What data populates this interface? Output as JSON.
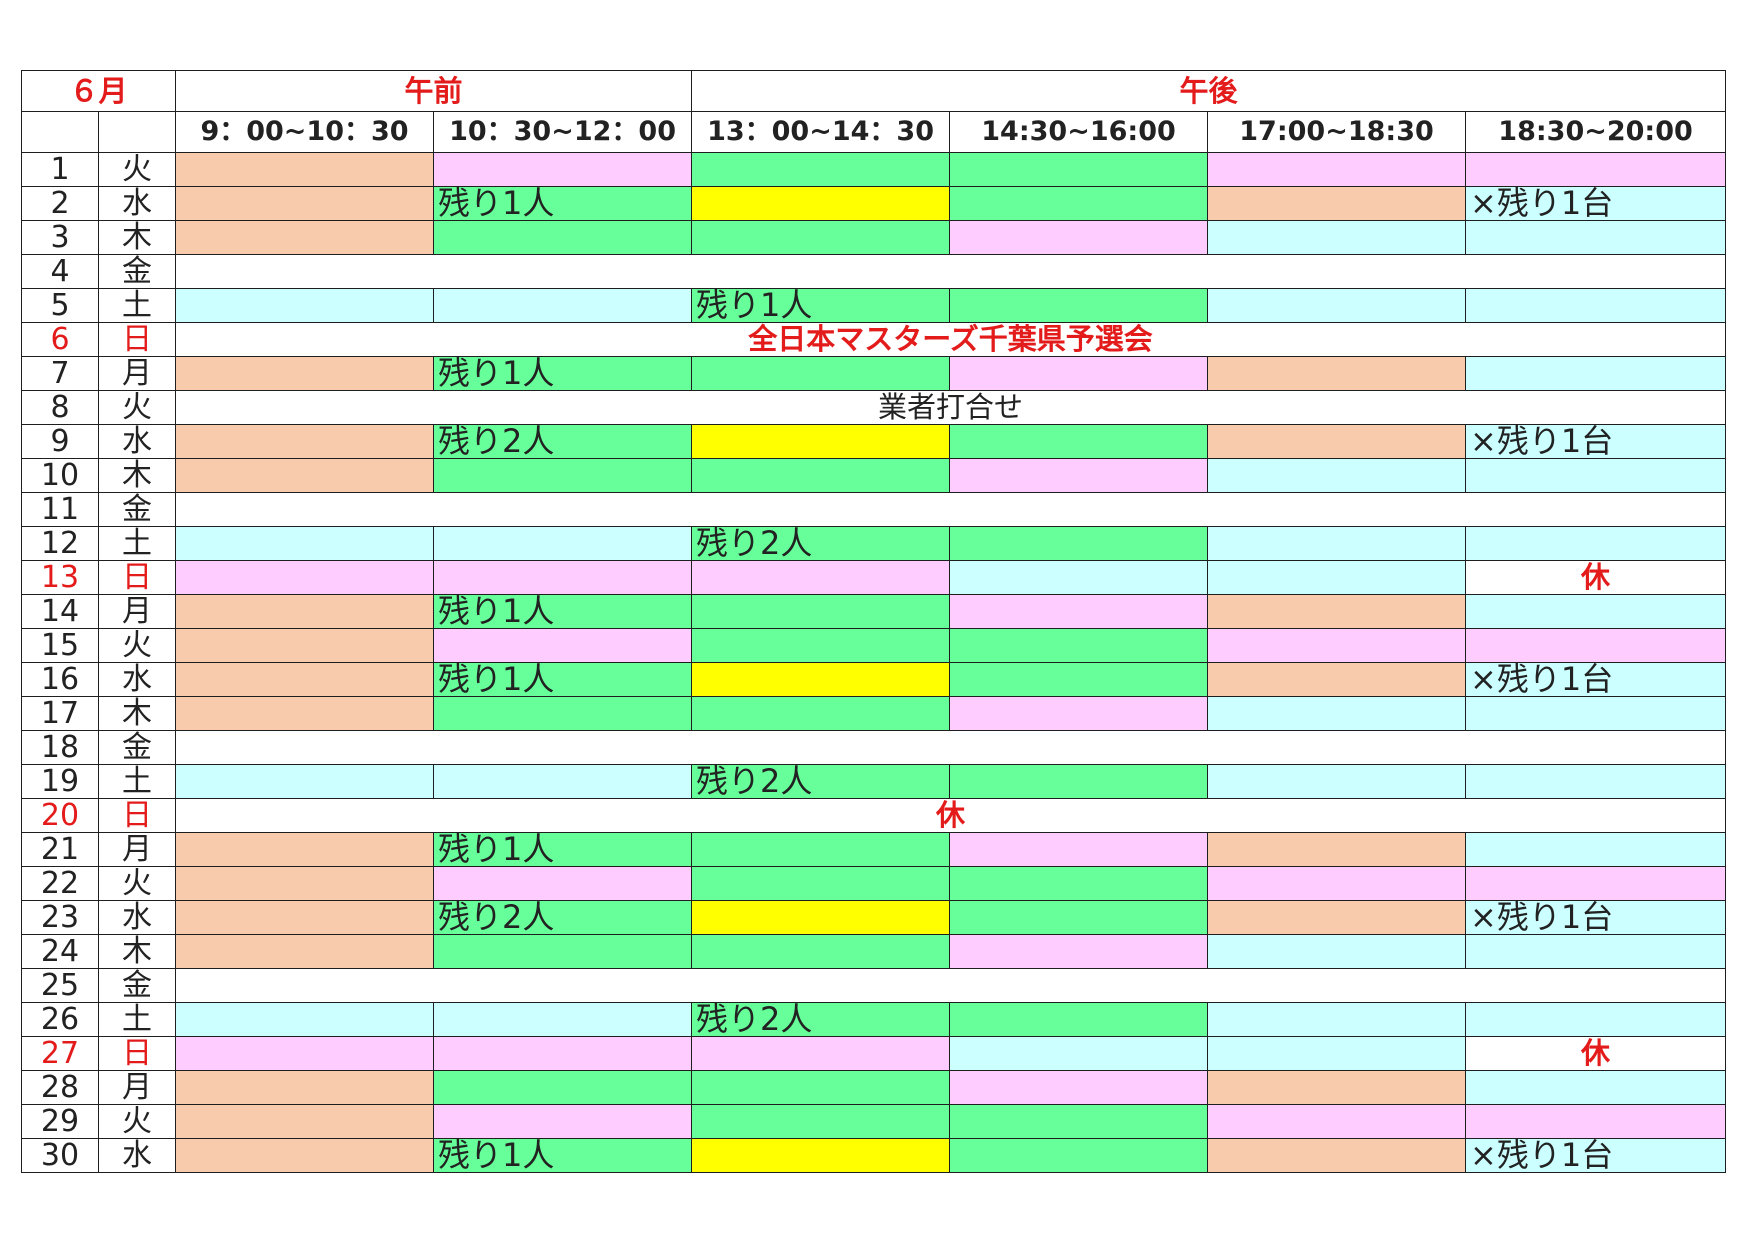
{
  "header": {
    "month": "６月",
    "morning": "午前",
    "afternoon": "午後",
    "slots": [
      "9：00~10：30",
      "10：30~12：00",
      "13：00~14：30",
      "14:30~16:00",
      "17:00~18:30",
      "18:30~20:00"
    ]
  },
  "legend_colors": {
    "peach": "#f8cbad",
    "pink": "#ffccff",
    "green": "#66ff99",
    "yellow": "#ffff00",
    "cyan": "#ccffff",
    "white": "#ffffff",
    "holiday_red": "#e31b1b"
  },
  "rows": [
    {
      "day": "1",
      "weekday": "火",
      "cells": [
        {
          "c": "peach"
        },
        {
          "c": "pink"
        },
        {
          "c": "green"
        },
        {
          "c": "green"
        },
        {
          "c": "pink"
        },
        {
          "c": "pink"
        }
      ]
    },
    {
      "day": "2",
      "weekday": "水",
      "cells": [
        {
          "c": "peach"
        },
        {
          "c": "green",
          "t": "残り1人"
        },
        {
          "c": "yellow"
        },
        {
          "c": "green"
        },
        {
          "c": "peach"
        },
        {
          "c": "cyan",
          "t": "×残り1台"
        }
      ]
    },
    {
      "day": "3",
      "weekday": "木",
      "cells": [
        {
          "c": "peach"
        },
        {
          "c": "green"
        },
        {
          "c": "green"
        },
        {
          "c": "pink"
        },
        {
          "c": "cyan"
        },
        {
          "c": "cyan"
        }
      ]
    },
    {
      "day": "4",
      "weekday": "金",
      "span": {
        "c": "white",
        "t": ""
      }
    },
    {
      "day": "5",
      "weekday": "土",
      "cells": [
        {
          "c": "cyan"
        },
        {
          "c": "cyan"
        },
        {
          "c": "green",
          "t": "残り1人"
        },
        {
          "c": "green"
        },
        {
          "c": "cyan"
        },
        {
          "c": "cyan"
        }
      ]
    },
    {
      "day": "6",
      "weekday": "日",
      "sunday": true,
      "span": {
        "c": "white",
        "t": "全日本マスターズ千葉県予選会",
        "red": true,
        "bold": true,
        "center": true
      }
    },
    {
      "day": "7",
      "weekday": "月",
      "cells": [
        {
          "c": "peach"
        },
        {
          "c": "green",
          "t": "残り1人"
        },
        {
          "c": "green"
        },
        {
          "c": "pink"
        },
        {
          "c": "peach"
        },
        {
          "c": "cyan"
        }
      ]
    },
    {
      "day": "8",
      "weekday": "火",
      "span": {
        "c": "white",
        "t": "業者打合せ",
        "center": true
      }
    },
    {
      "day": "9",
      "weekday": "水",
      "cells": [
        {
          "c": "peach"
        },
        {
          "c": "green",
          "t": "残り2人"
        },
        {
          "c": "yellow"
        },
        {
          "c": "green"
        },
        {
          "c": "peach"
        },
        {
          "c": "cyan",
          "t": "×残り1台"
        }
      ]
    },
    {
      "day": "10",
      "weekday": "木",
      "cells": [
        {
          "c": "peach"
        },
        {
          "c": "green"
        },
        {
          "c": "green"
        },
        {
          "c": "pink"
        },
        {
          "c": "cyan"
        },
        {
          "c": "cyan"
        }
      ]
    },
    {
      "day": "11",
      "weekday": "金",
      "span": {
        "c": "white",
        "t": ""
      }
    },
    {
      "day": "12",
      "weekday": "土",
      "cells": [
        {
          "c": "cyan"
        },
        {
          "c": "cyan"
        },
        {
          "c": "green",
          "t": "残り2人"
        },
        {
          "c": "green"
        },
        {
          "c": "cyan"
        },
        {
          "c": "cyan"
        }
      ]
    },
    {
      "day": "13",
      "weekday": "日",
      "sunday": true,
      "cells": [
        {
          "c": "pink"
        },
        {
          "c": "pink"
        },
        {
          "c": "pink"
        },
        {
          "c": "cyan"
        },
        {
          "c": "cyan"
        },
        {
          "c": "white",
          "t": "休",
          "red": true,
          "bold": true,
          "center": true
        }
      ]
    },
    {
      "day": "14",
      "weekday": "月",
      "cells": [
        {
          "c": "peach"
        },
        {
          "c": "green",
          "t": "残り1人"
        },
        {
          "c": "green"
        },
        {
          "c": "pink"
        },
        {
          "c": "peach"
        },
        {
          "c": "cyan"
        }
      ]
    },
    {
      "day": "15",
      "weekday": "火",
      "cells": [
        {
          "c": "peach"
        },
        {
          "c": "pink"
        },
        {
          "c": "green"
        },
        {
          "c": "green"
        },
        {
          "c": "pink"
        },
        {
          "c": "pink"
        }
      ]
    },
    {
      "day": "16",
      "weekday": "水",
      "cells": [
        {
          "c": "peach"
        },
        {
          "c": "green",
          "t": "残り1人"
        },
        {
          "c": "yellow"
        },
        {
          "c": "green"
        },
        {
          "c": "peach"
        },
        {
          "c": "cyan",
          "t": "×残り1台"
        }
      ]
    },
    {
      "day": "17",
      "weekday": "木",
      "cells": [
        {
          "c": "peach"
        },
        {
          "c": "green"
        },
        {
          "c": "green"
        },
        {
          "c": "pink"
        },
        {
          "c": "cyan"
        },
        {
          "c": "cyan"
        }
      ]
    },
    {
      "day": "18",
      "weekday": "金",
      "span": {
        "c": "white",
        "t": ""
      }
    },
    {
      "day": "19",
      "weekday": "土",
      "cells": [
        {
          "c": "cyan"
        },
        {
          "c": "cyan"
        },
        {
          "c": "green",
          "t": "残り2人"
        },
        {
          "c": "green"
        },
        {
          "c": "cyan"
        },
        {
          "c": "cyan"
        }
      ]
    },
    {
      "day": "20",
      "weekday": "日",
      "sunday": true,
      "span": {
        "c": "white",
        "t": "休",
        "red": true,
        "bold": true,
        "center": true
      }
    },
    {
      "day": "21",
      "weekday": "月",
      "cells": [
        {
          "c": "peach"
        },
        {
          "c": "green",
          "t": "残り1人"
        },
        {
          "c": "green"
        },
        {
          "c": "pink"
        },
        {
          "c": "peach"
        },
        {
          "c": "cyan"
        }
      ]
    },
    {
      "day": "22",
      "weekday": "火",
      "cells": [
        {
          "c": "peach"
        },
        {
          "c": "pink"
        },
        {
          "c": "green"
        },
        {
          "c": "green"
        },
        {
          "c": "pink"
        },
        {
          "c": "pink"
        }
      ]
    },
    {
      "day": "23",
      "weekday": "水",
      "cells": [
        {
          "c": "peach"
        },
        {
          "c": "green",
          "t": "残り2人"
        },
        {
          "c": "yellow"
        },
        {
          "c": "green"
        },
        {
          "c": "peach"
        },
        {
          "c": "cyan",
          "t": "×残り1台"
        }
      ]
    },
    {
      "day": "24",
      "weekday": "木",
      "cells": [
        {
          "c": "peach"
        },
        {
          "c": "green"
        },
        {
          "c": "green"
        },
        {
          "c": "pink"
        },
        {
          "c": "cyan"
        },
        {
          "c": "cyan"
        }
      ]
    },
    {
      "day": "25",
      "weekday": "金",
      "span": {
        "c": "white",
        "t": ""
      }
    },
    {
      "day": "26",
      "weekday": "土",
      "cells": [
        {
          "c": "cyan"
        },
        {
          "c": "cyan"
        },
        {
          "c": "green",
          "t": "残り2人"
        },
        {
          "c": "green"
        },
        {
          "c": "cyan"
        },
        {
          "c": "cyan"
        }
      ]
    },
    {
      "day": "27",
      "weekday": "日",
      "sunday": true,
      "cells": [
        {
          "c": "pink"
        },
        {
          "c": "pink"
        },
        {
          "c": "pink"
        },
        {
          "c": "cyan"
        },
        {
          "c": "cyan"
        },
        {
          "c": "white",
          "t": "休",
          "red": true,
          "bold": true,
          "center": true
        }
      ]
    },
    {
      "day": "28",
      "weekday": "月",
      "cells": [
        {
          "c": "peach"
        },
        {
          "c": "green"
        },
        {
          "c": "green"
        },
        {
          "c": "pink"
        },
        {
          "c": "peach"
        },
        {
          "c": "cyan"
        }
      ]
    },
    {
      "day": "29",
      "weekday": "火",
      "cells": [
        {
          "c": "peach"
        },
        {
          "c": "pink"
        },
        {
          "c": "green"
        },
        {
          "c": "green"
        },
        {
          "c": "pink"
        },
        {
          "c": "pink"
        }
      ]
    },
    {
      "day": "30",
      "weekday": "水",
      "cells": [
        {
          "c": "peach"
        },
        {
          "c": "green",
          "t": "残り1人"
        },
        {
          "c": "yellow"
        },
        {
          "c": "green"
        },
        {
          "c": "peach"
        },
        {
          "c": "cyan",
          "t": "×残り1台"
        }
      ]
    }
  ]
}
